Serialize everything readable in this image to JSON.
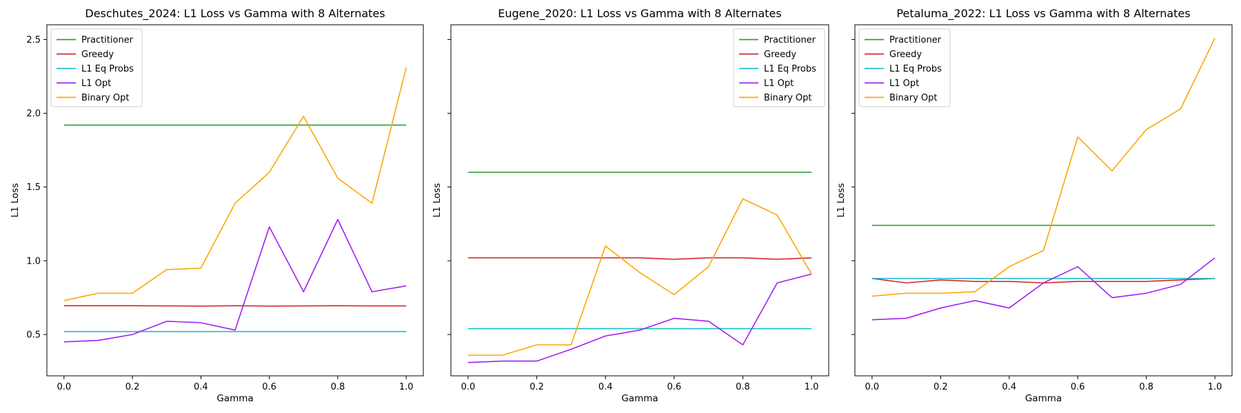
{
  "chart_data": [
    {
      "type": "line",
      "title": "Deschutes_2024: L1 Loss vs Gamma with 8 Alternates",
      "xlabel": "Gamma",
      "ylabel": "L1 Loss",
      "xlim": [
        -0.05,
        1.05
      ],
      "ylim": [
        0.22,
        2.6
      ],
      "xticks": [
        "0.0",
        "0.2",
        "0.4",
        "0.6",
        "0.8",
        "1.0"
      ],
      "yticks": [
        "0.5",
        "1.0",
        "1.5",
        "2.0",
        "2.5"
      ],
      "show_ytick_labels": true,
      "legend_position": "upper-left",
      "x": [
        0.0,
        0.1,
        0.2,
        0.3,
        0.4,
        0.5,
        0.6,
        0.7,
        0.8,
        0.9,
        1.0
      ],
      "series": [
        {
          "name": "Practitioner",
          "color": "#2ca02c",
          "values": [
            1.92,
            1.92,
            1.92,
            1.92,
            1.92,
            1.92,
            1.92,
            1.92,
            1.92,
            1.92,
            1.92
          ]
        },
        {
          "name": "Greedy",
          "color": "#d62728",
          "values": [
            0.695,
            0.695,
            0.695,
            0.694,
            0.693,
            0.695,
            0.693,
            0.694,
            0.695,
            0.694,
            0.694
          ]
        },
        {
          "name": "L1 Eq Probs",
          "color": "#17becf",
          "values": [
            0.52,
            0.52,
            0.52,
            0.52,
            0.52,
            0.52,
            0.52,
            0.52,
            0.52,
            0.52,
            0.52
          ]
        },
        {
          "name": "L1 Opt",
          "color": "#a020f0",
          "values": [
            0.45,
            0.46,
            0.5,
            0.59,
            0.58,
            0.53,
            1.23,
            0.79,
            1.28,
            0.79,
            0.83
          ]
        },
        {
          "name": "Binary Opt",
          "color": "#ffa500",
          "values": [
            0.73,
            0.78,
            0.78,
            0.94,
            0.95,
            1.39,
            1.6,
            1.98,
            1.56,
            1.39,
            2.31
          ]
        }
      ]
    },
    {
      "type": "line",
      "title": "Eugene_2020: L1 Loss vs Gamma with 8 Alternates",
      "xlabel": "Gamma",
      "ylabel": "L1 Loss",
      "xlim": [
        -0.05,
        1.05
      ],
      "ylim": [
        0.22,
        2.6
      ],
      "xticks": [
        "0.0",
        "0.2",
        "0.4",
        "0.6",
        "0.8",
        "1.0"
      ],
      "yticks": [
        "0.5",
        "1.0",
        "1.5",
        "2.0",
        "2.5"
      ],
      "show_ytick_labels": false,
      "legend_position": "upper-right",
      "x": [
        0.0,
        0.1,
        0.2,
        0.3,
        0.4,
        0.5,
        0.6,
        0.7,
        0.8,
        0.9,
        1.0
      ],
      "series": [
        {
          "name": "Practitioner",
          "color": "#2ca02c",
          "values": [
            1.6,
            1.6,
            1.6,
            1.6,
            1.6,
            1.6,
            1.6,
            1.6,
            1.6,
            1.6,
            1.6
          ]
        },
        {
          "name": "Greedy",
          "color": "#d62728",
          "values": [
            1.02,
            1.02,
            1.02,
            1.02,
            1.02,
            1.02,
            1.01,
            1.02,
            1.02,
            1.01,
            1.02
          ]
        },
        {
          "name": "L1 Eq Probs",
          "color": "#17becf",
          "values": [
            0.54,
            0.54,
            0.54,
            0.54,
            0.54,
            0.54,
            0.54,
            0.54,
            0.54,
            0.54,
            0.54
          ]
        },
        {
          "name": "L1 Opt",
          "color": "#a020f0",
          "values": [
            0.31,
            0.32,
            0.32,
            0.4,
            0.49,
            0.53,
            0.61,
            0.59,
            0.43,
            0.85,
            0.91
          ]
        },
        {
          "name": "Binary Opt",
          "color": "#ffa500",
          "values": [
            0.36,
            0.36,
            0.43,
            0.43,
            1.1,
            0.92,
            0.77,
            0.96,
            1.42,
            1.31,
            0.91
          ]
        }
      ]
    },
    {
      "type": "line",
      "title": "Petaluma_2022: L1 Loss vs Gamma with 8 Alternates",
      "xlabel": "Gamma",
      "ylabel": "L1 Loss",
      "xlim": [
        -0.05,
        1.05
      ],
      "ylim": [
        0.22,
        2.6
      ],
      "xticks": [
        "0.0",
        "0.2",
        "0.4",
        "0.6",
        "0.8",
        "1.0"
      ],
      "yticks": [
        "0.5",
        "1.0",
        "1.5",
        "2.0",
        "2.5"
      ],
      "show_ytick_labels": false,
      "legend_position": "upper-left",
      "x": [
        0.0,
        0.1,
        0.2,
        0.3,
        0.4,
        0.5,
        0.6,
        0.7,
        0.8,
        0.9,
        1.0
      ],
      "series": [
        {
          "name": "Practitioner",
          "color": "#2ca02c",
          "values": [
            1.24,
            1.24,
            1.24,
            1.24,
            1.24,
            1.24,
            1.24,
            1.24,
            1.24,
            1.24,
            1.24
          ]
        },
        {
          "name": "Greedy",
          "color": "#d62728",
          "values": [
            0.88,
            0.85,
            0.87,
            0.86,
            0.86,
            0.85,
            0.86,
            0.86,
            0.86,
            0.87,
            0.88
          ]
        },
        {
          "name": "L1 Eq Probs",
          "color": "#17becf",
          "values": [
            0.88,
            0.88,
            0.88,
            0.88,
            0.88,
            0.88,
            0.88,
            0.88,
            0.88,
            0.88,
            0.88
          ]
        },
        {
          "name": "L1 Opt",
          "color": "#a020f0",
          "values": [
            0.6,
            0.61,
            0.68,
            0.73,
            0.68,
            0.85,
            0.96,
            0.75,
            0.78,
            0.84,
            1.02
          ]
        },
        {
          "name": "Binary Opt",
          "color": "#ffa500",
          "values": [
            0.76,
            0.78,
            0.78,
            0.79,
            0.96,
            1.07,
            1.84,
            1.61,
            1.89,
            2.03,
            2.51
          ]
        }
      ]
    }
  ]
}
